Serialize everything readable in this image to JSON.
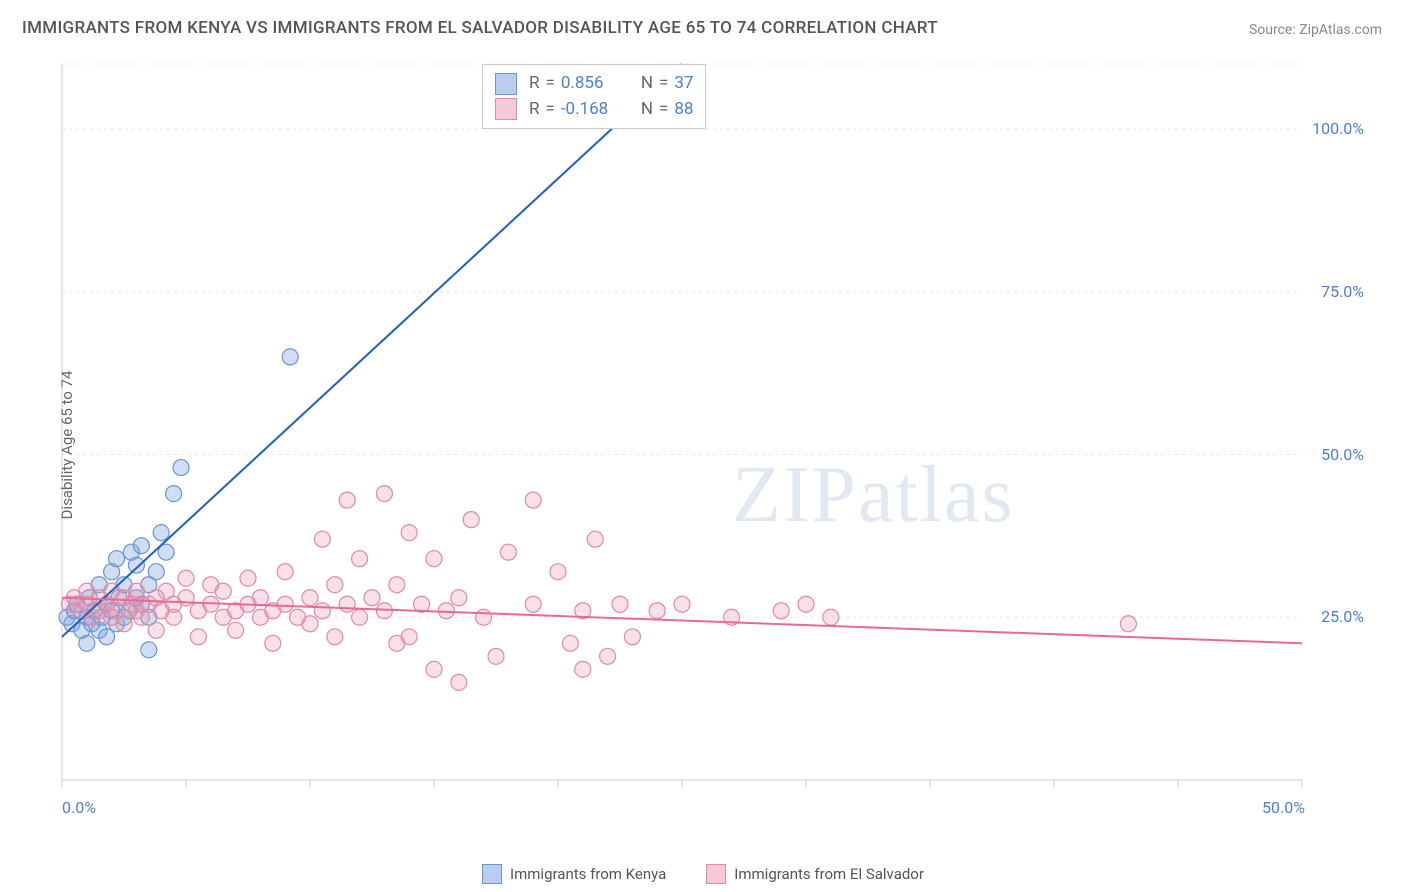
{
  "title": "IMMIGRANTS FROM KENYA VS IMMIGRANTS FROM EL SALVADOR DISABILITY AGE 65 TO 74 CORRELATION CHART",
  "source_label": "Source: ",
  "source_name": "ZipAtlas.com",
  "y_axis_label": "Disability Age 65 to 74",
  "watermark_a": "ZIP",
  "watermark_b": "atlas",
  "chart": {
    "type": "scatter",
    "xlim": [
      0,
      50
    ],
    "ylim": [
      0,
      110
    ],
    "x_ticks": [
      0,
      50
    ],
    "x_tick_labels": [
      "0.0%",
      "50.0%"
    ],
    "x_minor_ticks": [
      0,
      5,
      10,
      15,
      20,
      25,
      30,
      35,
      40,
      45,
      50
    ],
    "y_ticks": [
      25,
      50,
      75,
      100
    ],
    "y_tick_labels": [
      "25.0%",
      "50.0%",
      "75.0%",
      "100.0%"
    ],
    "grid_color": "#e5e5e5",
    "grid_dash": "3,4",
    "axis_color": "#cccccc",
    "background_color": "#ffffff",
    "x_tick_label_color": "#4a7fd8",
    "y_tick_label_color": "#4a7fd8",
    "marker_radius": 8,
    "marker_stroke_width": 1.2,
    "line_width": 2
  },
  "series": [
    {
      "key": "kenya",
      "label": "Immigrants from Kenya",
      "color_fill": "rgba(120,160,220,0.35)",
      "color_stroke": "#6a94d4",
      "swatch_fill": "#b8cdef",
      "swatch_border": "#6a94d4",
      "R": "0.856",
      "N": "37",
      "trend": {
        "x1": 0,
        "y1": 22,
        "x2": 25,
        "y2": 110,
        "color": "#1f5fc4"
      },
      "points": [
        [
          0.2,
          25
        ],
        [
          0.4,
          24
        ],
        [
          0.5,
          26
        ],
        [
          0.6,
          27
        ],
        [
          0.8,
          23
        ],
        [
          1.0,
          25
        ],
        [
          1.1,
          28
        ],
        [
          1.2,
          24
        ],
        [
          1.3,
          26
        ],
        [
          1.5,
          23
        ],
        [
          1.5,
          30
        ],
        [
          1.6,
          25
        ],
        [
          1.8,
          27
        ],
        [
          1.8,
          22
        ],
        [
          2.0,
          26
        ],
        [
          2.0,
          32
        ],
        [
          2.2,
          34
        ],
        [
          2.3,
          28
        ],
        [
          2.5,
          30
        ],
        [
          2.7,
          26
        ],
        [
          2.8,
          35
        ],
        [
          3.0,
          33
        ],
        [
          3.0,
          28
        ],
        [
          3.2,
          36
        ],
        [
          3.5,
          30
        ],
        [
          3.5,
          25
        ],
        [
          3.8,
          32
        ],
        [
          4.0,
          38
        ],
        [
          4.2,
          35
        ],
        [
          4.5,
          44
        ],
        [
          4.8,
          48
        ],
        [
          3.5,
          20
        ],
        [
          1.0,
          21
        ],
        [
          2.2,
          24
        ],
        [
          2.5,
          25
        ],
        [
          3.2,
          27
        ],
        [
          9.2,
          65
        ]
      ]
    },
    {
      "key": "elsalvador",
      "label": "Immigrants from El Salvador",
      "color_fill": "rgba(235,150,175,0.30)",
      "color_stroke": "#e08aa6",
      "swatch_fill": "#f6c9d6",
      "swatch_border": "#e08aa6",
      "R": "-0.168",
      "N": "88",
      "trend": {
        "x1": 0,
        "y1": 28,
        "x2": 50,
        "y2": 21,
        "color": "#e86a94"
      },
      "points": [
        [
          0.3,
          27
        ],
        [
          0.5,
          28
        ],
        [
          0.8,
          26
        ],
        [
          1.0,
          27
        ],
        [
          1.0,
          29
        ],
        [
          1.2,
          25
        ],
        [
          1.5,
          28
        ],
        [
          1.5,
          26
        ],
        [
          1.8,
          27
        ],
        [
          2.0,
          29
        ],
        [
          2.0,
          25
        ],
        [
          2.2,
          26
        ],
        [
          2.5,
          28
        ],
        [
          2.5,
          24
        ],
        [
          2.8,
          27
        ],
        [
          3.0,
          26
        ],
        [
          3.0,
          29
        ],
        [
          3.2,
          25
        ],
        [
          3.5,
          27
        ],
        [
          3.8,
          28
        ],
        [
          3.8,
          23
        ],
        [
          4.0,
          26
        ],
        [
          4.2,
          29
        ],
        [
          4.5,
          25
        ],
        [
          4.5,
          27
        ],
        [
          5.0,
          28
        ],
        [
          5.0,
          31
        ],
        [
          5.5,
          26
        ],
        [
          5.5,
          22
        ],
        [
          6.0,
          27
        ],
        [
          6.0,
          30
        ],
        [
          6.5,
          25
        ],
        [
          6.5,
          29
        ],
        [
          7.0,
          26
        ],
        [
          7.0,
          23
        ],
        [
          7.5,
          27
        ],
        [
          7.5,
          31
        ],
        [
          8.0,
          25
        ],
        [
          8.0,
          28
        ],
        [
          8.5,
          26
        ],
        [
          8.5,
          21
        ],
        [
          9.0,
          27
        ],
        [
          9.0,
          32
        ],
        [
          9.5,
          25
        ],
        [
          10.0,
          28
        ],
        [
          10.0,
          24
        ],
        [
          10.5,
          26
        ],
        [
          10.5,
          37
        ],
        [
          11.0,
          30
        ],
        [
          11.0,
          22
        ],
        [
          11.5,
          27
        ],
        [
          11.5,
          43
        ],
        [
          12.0,
          25
        ],
        [
          12.0,
          34
        ],
        [
          12.5,
          28
        ],
        [
          13.0,
          26
        ],
        [
          13.0,
          44
        ],
        [
          13.5,
          30
        ],
        [
          13.5,
          21
        ],
        [
          14.0,
          22
        ],
        [
          14.0,
          38
        ],
        [
          14.5,
          27
        ],
        [
          15.0,
          17
        ],
        [
          15.0,
          34
        ],
        [
          15.5,
          26
        ],
        [
          16.0,
          28
        ],
        [
          16.0,
          15
        ],
        [
          16.5,
          40
        ],
        [
          17.0,
          25
        ],
        [
          17.5,
          19
        ],
        [
          18.0,
          35
        ],
        [
          19.0,
          27
        ],
        [
          19.0,
          43
        ],
        [
          20.0,
          32
        ],
        [
          20.5,
          21
        ],
        [
          21.0,
          26
        ],
        [
          21.0,
          17
        ],
        [
          21.5,
          37
        ],
        [
          22.0,
          19
        ],
        [
          22.5,
          27
        ],
        [
          23.0,
          22
        ],
        [
          24.0,
          26
        ],
        [
          25.0,
          27
        ],
        [
          27.0,
          25
        ],
        [
          29.0,
          26
        ],
        [
          30.0,
          27
        ],
        [
          31.0,
          25
        ],
        [
          43.0,
          24
        ]
      ]
    }
  ],
  "legend": {
    "items": [
      {
        "series": 0
      },
      {
        "series": 1
      }
    ]
  },
  "stats_box": {
    "rows": [
      {
        "series": 0
      },
      {
        "series": 1
      }
    ],
    "R_label": "R",
    "N_label": "N",
    "eq": "="
  }
}
